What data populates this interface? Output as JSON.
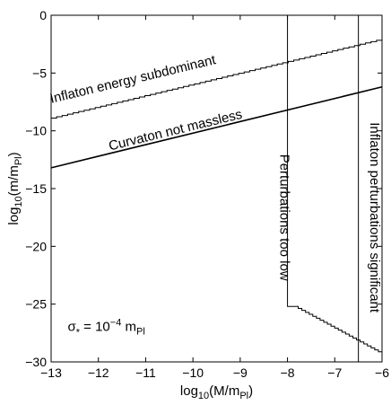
{
  "chart_data": {
    "type": "line",
    "title": "",
    "xlabel": {
      "main": "log",
      "sub": "10",
      "paren_open": "(M/m",
      "sub2": "Pl",
      "paren_close": ")"
    },
    "ylabel": {
      "main": "log",
      "sub": "10",
      "paren_open": "(m/m",
      "sub2": "Pl",
      "paren_close": ")"
    },
    "xlim": [
      -13,
      -6
    ],
    "ylim": [
      -30,
      0
    ],
    "xticks": [
      -13,
      -12,
      -11,
      -10,
      -9,
      -8,
      -7,
      -6
    ],
    "yticks": [
      0,
      -5,
      -10,
      -15,
      -20,
      -25,
      -30
    ],
    "xtick_labels": [
      "−13",
      "−12",
      "−11",
      "−10",
      "−9",
      "−8",
      "−7",
      "−6"
    ],
    "ytick_labels": [
      "0",
      "−5",
      "−10",
      "−15",
      "−20",
      "−25",
      "−30"
    ],
    "grid": false,
    "series": [
      {
        "type": "line",
        "x": [
          -13,
          -6
        ],
        "y": [
          -8.9,
          -2.05
        ],
        "style": "stepped",
        "stroke_width": 1
      },
      {
        "type": "line",
        "x": [
          -13,
          -6
        ],
        "y": [
          -13.2,
          -6.2
        ],
        "style": "solid",
        "stroke_width": 1.6
      },
      {
        "type": "line",
        "x": [
          -8,
          -8,
          -7.85,
          -6
        ],
        "y": [
          -0.0,
          -25.2,
          -25.2,
          -29.3
        ],
        "style": "stepped-tail",
        "stroke_width": 1
      },
      {
        "type": "line",
        "x": [
          -6.5,
          -6.5
        ],
        "y": [
          0,
          -30
        ],
        "style": "solid",
        "stroke_width": 1
      }
    ],
    "annotations": [
      {
        "text": "Inflaton energy subdominant",
        "x": -11.25,
        "y": -5.9,
        "rotate_with": 0
      },
      {
        "text": "Curvaton not massless",
        "x": -10.35,
        "y": -10.3,
        "rotate_with": 1
      },
      {
        "text": "Perturbations too low",
        "x": -8.15,
        "y": -17.5,
        "vertical": true
      },
      {
        "text": "Inflaton perturbations significant",
        "x": -6.25,
        "y": -17.5,
        "vertical": true
      }
    ],
    "sigma_label": {
      "sym": "σ",
      "sub": "*",
      "eq": " = 10",
      "exp": "−4",
      "unit": " m",
      "unit_sub": "Pl",
      "x": -12.65,
      "y": -27.3
    }
  }
}
